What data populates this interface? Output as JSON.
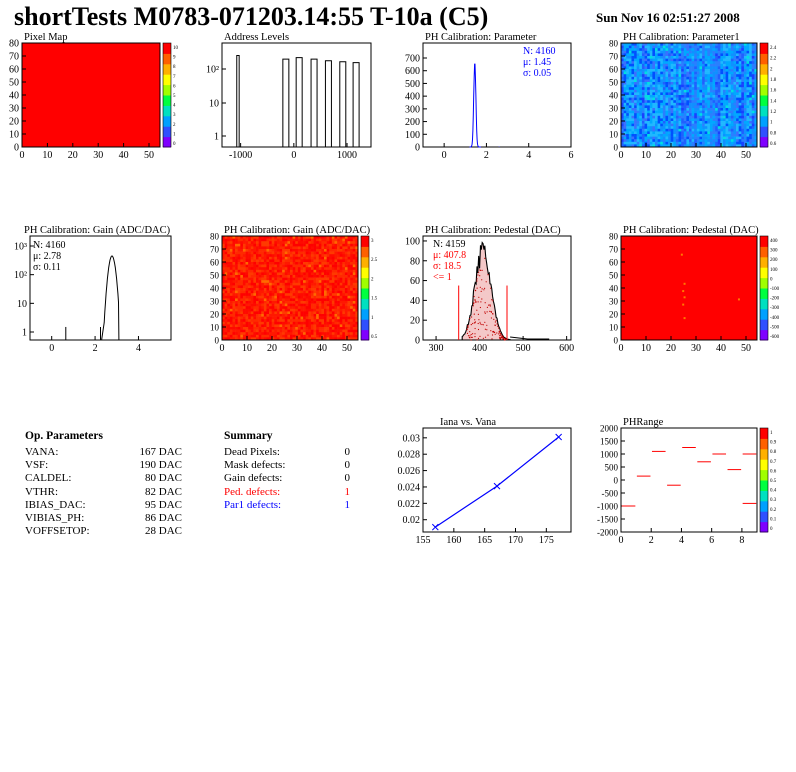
{
  "header": {
    "title": "shortTests M0783-071203.14:55 T-10a (C5)",
    "date": "Sun Nov 16 02:51:27 2008"
  },
  "colors": {
    "red": "#ff0000",
    "blue": "#0000ff",
    "black": "#000000"
  },
  "panels": {
    "pixel_map": {
      "title": "Pixel Map",
      "yticks": [
        "80",
        "70",
        "60",
        "50",
        "40",
        "30",
        "20",
        "10",
        "0"
      ],
      "xticks": [
        "0",
        "10",
        "20",
        "30",
        "40",
        "50"
      ],
      "zticks": [
        "10",
        "9",
        "8",
        "7",
        "6",
        "5",
        "4",
        "3",
        "2",
        "1",
        "0"
      ]
    },
    "address_levels": {
      "title": "Address Levels",
      "yticks": [
        "10²",
        "10",
        "1"
      ],
      "xticks": [
        "-1000",
        "0",
        "1000"
      ]
    },
    "ph_param": {
      "title": "PH Calibration: Parameter",
      "yticks": [
        "700",
        "600",
        "500",
        "400",
        "300",
        "200",
        "100",
        "0"
      ],
      "xticks": [
        "0",
        "2",
        "4",
        "6"
      ],
      "stats": [
        "N: 4160",
        "μ: 1.45",
        "σ: 0.05"
      ]
    },
    "ph_param1": {
      "title": "PH Calibration: Parameter1",
      "yticks": [
        "80",
        "70",
        "60",
        "50",
        "40",
        "30",
        "20",
        "10",
        "0"
      ],
      "xticks": [
        "0",
        "10",
        "20",
        "30",
        "40",
        "50"
      ],
      "zticks": [
        "2.4",
        "2.2",
        "2",
        "1.8",
        "1.6",
        "1.4",
        "1.2",
        "1",
        "0.8",
        "0.6"
      ]
    },
    "gain_hist": {
      "title": "PH Calibration: Gain (ADC/DAC)",
      "yticks": [
        "10³",
        "10²",
        "10",
        "1"
      ],
      "xticks": [
        "0",
        "2",
        "4"
      ],
      "stats": [
        "N: 4160",
        "μ: 2.78",
        "σ: 0.11"
      ]
    },
    "gain_map": {
      "title": "PH Calibration: Gain (ADC/DAC)",
      "yticks": [
        "80",
        "70",
        "60",
        "50",
        "40",
        "30",
        "20",
        "10",
        "0"
      ],
      "xticks": [
        "0",
        "10",
        "20",
        "30",
        "40",
        "50"
      ],
      "zticks": [
        "3",
        "2.5",
        "2",
        "1.5",
        "1",
        "0.5"
      ]
    },
    "pedestal_hist": {
      "title": "PH Calibration: Pedestal (DAC)",
      "yticks": [
        "100",
        "80",
        "60",
        "40",
        "20",
        "0"
      ],
      "xticks": [
        "300",
        "400",
        "500",
        "600"
      ],
      "stats": [
        "N: 4159",
        "μ: 407.8",
        "σ: 18.5",
        "<= 1"
      ]
    },
    "pedestal_map": {
      "title": "PH Calibration: Pedestal (DAC)",
      "yticks": [
        "80",
        "70",
        "60",
        "50",
        "40",
        "30",
        "20",
        "10",
        "0"
      ],
      "xticks": [
        "0",
        "10",
        "20",
        "30",
        "40",
        "50"
      ],
      "zticks": [
        "400",
        "300",
        "200",
        "100",
        "0",
        "-100",
        "-200",
        "-300",
        "-400",
        "-500",
        "-600"
      ]
    },
    "iana_vana": {
      "title": "Iana vs. Vana",
      "yticks": [
        "0.03",
        "0.028",
        "0.026",
        "0.024",
        "0.022",
        "0.02"
      ],
      "xticks": [
        "155",
        "160",
        "165",
        "170",
        "175"
      ]
    },
    "phrange": {
      "title": "PHRange",
      "yticks": [
        "2000",
        "1500",
        "1000",
        "500",
        "0",
        "-500",
        "-1000",
        "-1500",
        "-2000"
      ],
      "xticks": [
        "0",
        "2",
        "4",
        "6",
        "8"
      ],
      "zticks": [
        "1",
        "0.9",
        "0.8",
        "0.7",
        "0.6",
        "0.5",
        "0.4",
        "0.3",
        "0.2",
        "0.1",
        "0"
      ]
    }
  },
  "op_params": {
    "heading": "Op. Parameters",
    "rows": [
      {
        "name": "VANA:",
        "value": "167 DAC"
      },
      {
        "name": "VSF:",
        "value": "190 DAC"
      },
      {
        "name": "CALDEL:",
        "value": "80 DAC"
      },
      {
        "name": "VTHR:",
        "value": "82 DAC"
      },
      {
        "name": "IBIAS_DAC:",
        "value": "95 DAC"
      },
      {
        "name": "VIBIAS_PH:",
        "value": "86 DAC"
      },
      {
        "name": "VOFFSETOP:",
        "value": "28 DAC"
      }
    ]
  },
  "summary": {
    "heading": "Summary",
    "rows": [
      {
        "name": "Dead Pixels:",
        "value": "0",
        "color": "#000000"
      },
      {
        "name": "Mask defects:",
        "value": "0",
        "color": "#000000"
      },
      {
        "name": "Gain defects:",
        "value": "0",
        "color": "#000000"
      },
      {
        "name": "Ped. defects:",
        "value": "1",
        "color": "#ff0000"
      },
      {
        "name": "Par1 defects:",
        "value": "1",
        "color": "#0000ff"
      }
    ]
  },
  "chart_data": [
    {
      "type": "heatmap",
      "title": "Pixel Map",
      "xlim": [
        0,
        52
      ],
      "ylim": [
        0,
        80
      ],
      "zlim": [
        0,
        10
      ],
      "fill": "uniform red (maximum)"
    },
    {
      "type": "line",
      "title": "Address Levels",
      "yscale": "log",
      "xlim": [
        -1350,
        1450
      ],
      "peak_x": [
        -1050,
        -150,
        100,
        380,
        650,
        920,
        1170
      ],
      "peak_y": [
        250,
        200,
        220,
        200,
        180,
        170,
        160
      ]
    },
    {
      "type": "line",
      "title": "PH Calibration: Parameter",
      "xlim": [
        -1,
        6
      ],
      "ylim": [
        0,
        700
      ],
      "mean": 1.45,
      "sigma": 0.05,
      "entries": 4160,
      "peak": 665
    },
    {
      "type": "heatmap",
      "title": "PH Calibration: Parameter1",
      "xlim": [
        0,
        52
      ],
      "ylim": [
        0,
        80
      ],
      "zlim": [
        0.5,
        2.5
      ]
    },
    {
      "type": "line",
      "title": "PH Calibration: Gain (ADC/DAC)",
      "yscale": "log",
      "xlim": [
        -1,
        5.5
      ],
      "mean": 2.78,
      "sigma": 0.11,
      "entries": 4160,
      "peak": 450
    },
    {
      "type": "heatmap",
      "title": "PH Calibration: Gain (ADC/DAC)",
      "xlim": [
        0,
        52
      ],
      "ylim": [
        0,
        80
      ],
      "zlim": [
        0,
        3
      ]
    },
    {
      "type": "bar",
      "title": "PH Calibration: Pedestal (DAC)",
      "xlim": [
        270,
        610
      ],
      "ylim": [
        0,
        105
      ],
      "mean": 407.8,
      "sigma": 18.5,
      "entries": 4159,
      "cut_lines": [
        352,
        463
      ],
      "peak": 95
    },
    {
      "type": "heatmap",
      "title": "PH Calibration: Pedestal (DAC)",
      "xlim": [
        0,
        52
      ],
      "ylim": [
        0,
        80
      ],
      "zlim": [
        -600,
        400
      ]
    },
    {
      "type": "line",
      "title": "Iana vs. Vana",
      "xlim": [
        155,
        179
      ],
      "ylim": [
        0.0185,
        0.0312
      ],
      "x": [
        157,
        167,
        177
      ],
      "y": [
        0.0191,
        0.0241,
        0.0301
      ]
    },
    {
      "type": "heatmap",
      "title": "PHRange",
      "xlim": [
        0,
        9
      ],
      "ylim": [
        -2000,
        2000
      ],
      "zlim": [
        0,
        1
      ],
      "segments": [
        {
          "x": [
            0,
            1
          ],
          "y": -1000
        },
        {
          "x": [
            1,
            2
          ],
          "y": 150
        },
        {
          "x": [
            2,
            3
          ],
          "y": 1100
        },
        {
          "x": [
            3,
            4
          ],
          "y": -200
        },
        {
          "x": [
            4,
            5
          ],
          "y": 1250
        },
        {
          "x": [
            5,
            6
          ],
          "y": 700
        },
        {
          "x": [
            6,
            7
          ],
          "y": 1000
        },
        {
          "x": [
            7,
            8
          ],
          "y": 400
        },
        {
          "x": [
            8,
            9
          ],
          "y": 1000
        },
        {
          "x": [
            8,
            9
          ],
          "y": -900
        }
      ]
    }
  ]
}
